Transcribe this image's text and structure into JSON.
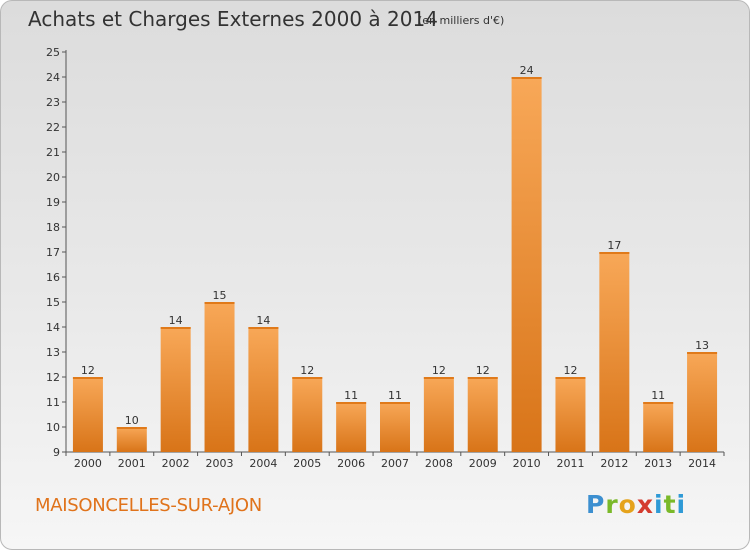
{
  "header": {
    "title": "Achats et Charges Externes 2000 à 2014",
    "subtitle": "(en milliers d'€)"
  },
  "footer": {
    "commune": "MAISONCELLES-SUR-AJON",
    "logo": "Proxiti"
  },
  "colors": {
    "bar_top": "#f8a858",
    "bar_bottom": "#d87418",
    "commune_text": "#e0731b"
  },
  "chart_data": {
    "type": "bar",
    "title": "Achats et Charges Externes 2000 à 2014",
    "subtitle": "(en milliers d'€)",
    "categories": [
      "2000",
      "2001",
      "2002",
      "2003",
      "2004",
      "2005",
      "2006",
      "2007",
      "2008",
      "2009",
      "2010",
      "2011",
      "2012",
      "2013",
      "2014"
    ],
    "values": [
      12,
      10,
      14,
      15,
      14,
      12,
      11,
      11,
      12,
      12,
      24,
      12,
      17,
      11,
      13
    ],
    "data_labels": [
      "12",
      "10",
      "14",
      "15",
      "14",
      "12",
      "11",
      "11",
      "12",
      "12",
      "24",
      "12",
      "17",
      "11",
      "13"
    ],
    "ylim": [
      9,
      25
    ],
    "yticks": [
      "9",
      "10",
      "11",
      "12",
      "13",
      "14",
      "15",
      "16",
      "17",
      "18",
      "19",
      "20",
      "21",
      "22",
      "23",
      "24",
      "25"
    ],
    "grid": false,
    "xlabel": "",
    "ylabel": ""
  }
}
